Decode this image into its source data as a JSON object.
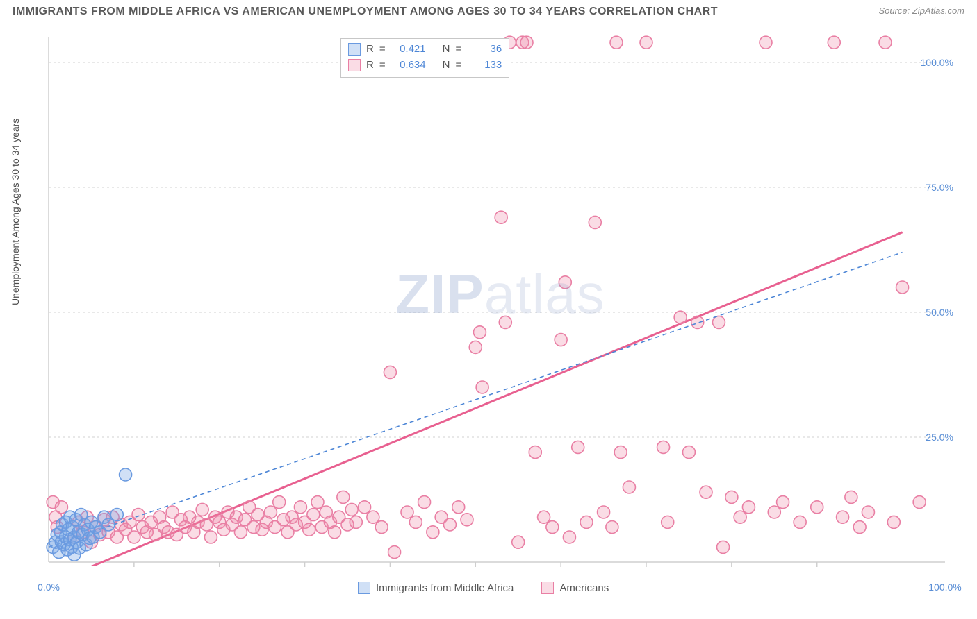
{
  "title": "IMMIGRANTS FROM MIDDLE AFRICA VS AMERICAN UNEMPLOYMENT AMONG AGES 30 TO 34 YEARS CORRELATION CHART",
  "source": "Source: ZipAtlas.com",
  "y_axis_label": "Unemployment Among Ages 30 to 34 years",
  "watermark_pre": "ZIP",
  "watermark_post": "atlas",
  "chart": {
    "type": "scatter",
    "xlim": [
      0,
      105
    ],
    "ylim": [
      0,
      105
    ],
    "y_ticks": [
      25,
      50,
      75,
      100
    ],
    "y_tick_labels": [
      "25.0%",
      "50.0%",
      "75.0%",
      "100.0%"
    ],
    "x_ticks_minor": [
      10,
      20,
      30,
      40,
      50,
      60,
      70,
      80,
      90
    ],
    "x_ends": {
      "left_label": "0.0%",
      "right_label": "100.0%"
    },
    "background_color": "#ffffff",
    "grid_color": "#d0d0d0",
    "axis_color": "#cfcfcf",
    "marker_radius": 9,
    "marker_stroke_width": 1.6,
    "series": [
      {
        "id": "immigrants",
        "label": "Immigrants from Middle Africa",
        "fill": "rgba(120,165,230,0.35)",
        "stroke": "#6a9ae0",
        "r_value": "0.421",
        "n_value": "36",
        "trend": {
          "x1": 0,
          "y1": 3,
          "x2": 100,
          "y2": 62,
          "dash": "6 5",
          "width": 1.6,
          "color": "#4d86d6"
        },
        "points": [
          [
            0.5,
            3
          ],
          [
            0.8,
            4
          ],
          [
            1,
            5.5
          ],
          [
            1.2,
            2
          ],
          [
            1.4,
            6
          ],
          [
            1.5,
            4
          ],
          [
            1.6,
            7.5
          ],
          [
            1.8,
            3.5
          ],
          [
            2,
            5
          ],
          [
            2,
            8
          ],
          [
            2.2,
            2.5
          ],
          [
            2.3,
            6.5
          ],
          [
            2.5,
            4.5
          ],
          [
            2.5,
            9
          ],
          [
            2.7,
            3
          ],
          [
            2.8,
            7
          ],
          [
            3,
            5
          ],
          [
            3,
            1.5
          ],
          [
            3.2,
            8.5
          ],
          [
            3.3,
            4
          ],
          [
            3.5,
            6
          ],
          [
            3.6,
            2.8
          ],
          [
            3.8,
            9.5
          ],
          [
            4,
            5.5
          ],
          [
            4.2,
            7.5
          ],
          [
            4.4,
            3.5
          ],
          [
            4.6,
            6.5
          ],
          [
            4.8,
            4.8
          ],
          [
            5,
            8
          ],
          [
            5.2,
            5
          ],
          [
            5.5,
            7
          ],
          [
            6,
            6
          ],
          [
            6.5,
            9
          ],
          [
            7,
            7.5
          ],
          [
            8,
            9.5
          ],
          [
            9,
            17.5
          ]
        ]
      },
      {
        "id": "americans",
        "label": "Americans",
        "fill": "rgba(240,140,170,0.30)",
        "stroke": "#e97fa4",
        "r_value": "0.634",
        "n_value": "133",
        "trend": {
          "x1": 2,
          "y1": -3,
          "x2": 100,
          "y2": 66,
          "dash": "none",
          "width": 3,
          "color": "#e86090"
        },
        "points": [
          [
            0.5,
            12
          ],
          [
            0.8,
            9
          ],
          [
            1,
            7
          ],
          [
            1.5,
            11
          ],
          [
            3,
            5
          ],
          [
            3.5,
            8
          ],
          [
            4,
            6
          ],
          [
            4.5,
            9
          ],
          [
            5,
            4
          ],
          [
            5.5,
            7
          ],
          [
            6,
            5.5
          ],
          [
            6.5,
            8.5
          ],
          [
            7,
            6
          ],
          [
            7.5,
            9
          ],
          [
            8,
            5
          ],
          [
            8.5,
            7.5
          ],
          [
            9,
            6.5
          ],
          [
            9.5,
            8
          ],
          [
            10,
            5
          ],
          [
            10.5,
            9.5
          ],
          [
            11,
            7
          ],
          [
            11.5,
            6
          ],
          [
            12,
            8
          ],
          [
            12.5,
            5.5
          ],
          [
            13,
            9
          ],
          [
            13.5,
            7
          ],
          [
            14,
            6
          ],
          [
            14.5,
            10
          ],
          [
            15,
            5.5
          ],
          [
            15.5,
            8.5
          ],
          [
            16,
            7
          ],
          [
            16.5,
            9
          ],
          [
            17,
            6
          ],
          [
            17.5,
            8
          ],
          [
            18,
            10.5
          ],
          [
            18.5,
            7.5
          ],
          [
            19,
            5
          ],
          [
            19.5,
            9
          ],
          [
            20,
            8
          ],
          [
            20.5,
            6.5
          ],
          [
            21,
            10
          ],
          [
            21.5,
            7.5
          ],
          [
            22,
            9
          ],
          [
            22.5,
            6
          ],
          [
            23,
            8.5
          ],
          [
            23.5,
            11
          ],
          [
            24,
            7
          ],
          [
            24.5,
            9.5
          ],
          [
            25,
            6.5
          ],
          [
            25.5,
            8
          ],
          [
            26,
            10
          ],
          [
            26.5,
            7
          ],
          [
            27,
            12
          ],
          [
            27.5,
            8.5
          ],
          [
            28,
            6
          ],
          [
            28.5,
            9
          ],
          [
            29,
            7.5
          ],
          [
            29.5,
            11
          ],
          [
            30,
            8
          ],
          [
            30.5,
            6.5
          ],
          [
            31,
            9.5
          ],
          [
            31.5,
            12
          ],
          [
            32,
            7
          ],
          [
            32.5,
            10
          ],
          [
            33,
            8
          ],
          [
            33.5,
            6
          ],
          [
            34,
            9
          ],
          [
            34.5,
            13
          ],
          [
            35,
            7.5
          ],
          [
            35.5,
            10.5
          ],
          [
            36,
            8
          ],
          [
            37,
            11
          ],
          [
            38,
            9
          ],
          [
            39,
            7
          ],
          [
            40,
            38
          ],
          [
            40.5,
            2
          ],
          [
            42,
            10
          ],
          [
            43,
            8
          ],
          [
            44,
            12
          ],
          [
            45,
            6
          ],
          [
            46,
            9
          ],
          [
            47,
            7.5
          ],
          [
            48,
            11
          ],
          [
            49,
            8.5
          ],
          [
            50,
            43
          ],
          [
            50.5,
            46
          ],
          [
            50.8,
            35
          ],
          [
            53,
            69
          ],
          [
            53.5,
            48
          ],
          [
            54,
            104
          ],
          [
            55,
            4
          ],
          [
            55.5,
            104
          ],
          [
            56,
            104
          ],
          [
            57,
            22
          ],
          [
            58,
            9
          ],
          [
            59,
            7
          ],
          [
            60,
            44.5
          ],
          [
            60.5,
            56
          ],
          [
            61,
            5
          ],
          [
            62,
            23
          ],
          [
            63,
            8
          ],
          [
            64,
            68
          ],
          [
            65,
            10
          ],
          [
            66,
            7
          ],
          [
            66.5,
            104
          ],
          [
            67,
            22
          ],
          [
            68,
            15
          ],
          [
            70,
            104
          ],
          [
            72,
            23
          ],
          [
            72.5,
            8
          ],
          [
            74,
            49
          ],
          [
            75,
            22
          ],
          [
            76,
            48
          ],
          [
            77,
            14
          ],
          [
            78.5,
            48
          ],
          [
            79,
            3
          ],
          [
            80,
            13
          ],
          [
            81,
            9
          ],
          [
            82,
            11
          ],
          [
            84,
            104
          ],
          [
            85,
            10
          ],
          [
            86,
            12
          ],
          [
            88,
            8
          ],
          [
            90,
            11
          ],
          [
            92,
            104
          ],
          [
            93,
            9
          ],
          [
            94,
            13
          ],
          [
            95,
            7
          ],
          [
            96,
            10
          ],
          [
            98,
            104
          ],
          [
            99,
            8
          ],
          [
            100,
            55
          ],
          [
            102,
            12
          ]
        ]
      }
    ]
  },
  "legend_top": {
    "r_label": "R",
    "n_label": "N",
    "eq": "="
  }
}
